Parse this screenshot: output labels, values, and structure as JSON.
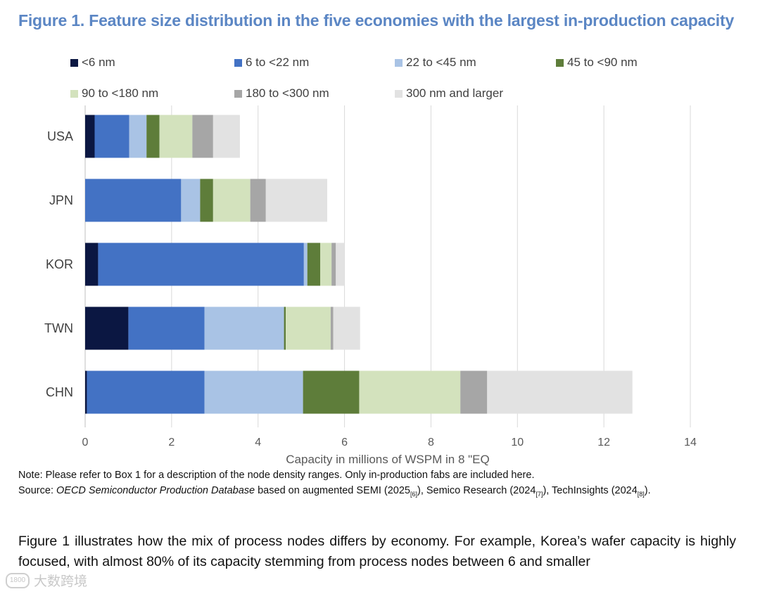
{
  "figure_title": "Figure 1. Feature size distribution in the five economies with the largest in-production capacity",
  "chart_data": {
    "type": "bar",
    "orientation": "horizontal",
    "stacked": true,
    "categories": [
      "USA",
      "JPN",
      "KOR",
      "TWN",
      "CHN"
    ],
    "series": [
      {
        "name": "<6 nm",
        "color": "#0b1742",
        "values": [
          0.22,
          0.0,
          0.3,
          1.0,
          0.04
        ]
      },
      {
        "name": "6 to <22 nm",
        "color": "#4372c4",
        "values": [
          0.8,
          2.22,
          4.76,
          1.76,
          2.72
        ]
      },
      {
        "name": "22 to <45 nm",
        "color": "#a9c3e5",
        "values": [
          0.4,
          0.44,
          0.08,
          1.84,
          2.28
        ]
      },
      {
        "name": "45 to <90 nm",
        "color": "#5e7d3a",
        "values": [
          0.3,
          0.3,
          0.3,
          0.04,
          1.3
        ]
      },
      {
        "name": "90 to <180 nm",
        "color": "#d3e2bd",
        "values": [
          0.76,
          0.86,
          0.26,
          1.04,
          2.34
        ]
      },
      {
        "name": "180 to <300 nm",
        "color": "#a6a6a6",
        "values": [
          0.48,
          0.36,
          0.1,
          0.06,
          0.62
        ]
      },
      {
        "name": "300 nm and larger",
        "color": "#e2e2e2",
        "values": [
          0.62,
          1.42,
          0.2,
          0.62,
          3.36
        ]
      }
    ],
    "xlim": [
      0,
      14
    ],
    "xticks": [
      0,
      2,
      4,
      6,
      8,
      10,
      12,
      14
    ],
    "xticklabels": [
      "0",
      "2",
      "4",
      "6",
      "8",
      "10",
      "12",
      "14"
    ],
    "xlabel": "Capacity in millions of WSPM in 8 \"EQ",
    "grid": "vertical",
    "legend": "top"
  },
  "note": "Note: Please refer to Box 1 for a description of the node density ranges. Only in-production fabs are included here.",
  "source": {
    "prefix": "Source: ",
    "database": "OECD Semiconductor Production Database",
    "text1": " based on augmented SEMI (2025",
    "ref1": "[6]",
    "text2": "), Semico Research (2024",
    "ref2": "[7]",
    "text3": "), TechInsights (2024",
    "ref3": "[8]",
    "text4": ")."
  },
  "body_text": "Figure 1 illustrates how the mix of process nodes differs by economy. For example, Korea’s wafer capacity is highly focused, with almost 80% of its capacity stemming from process nodes between 6 and smaller",
  "watermark": {
    "logo": "1800",
    "text": "大数跨境"
  }
}
